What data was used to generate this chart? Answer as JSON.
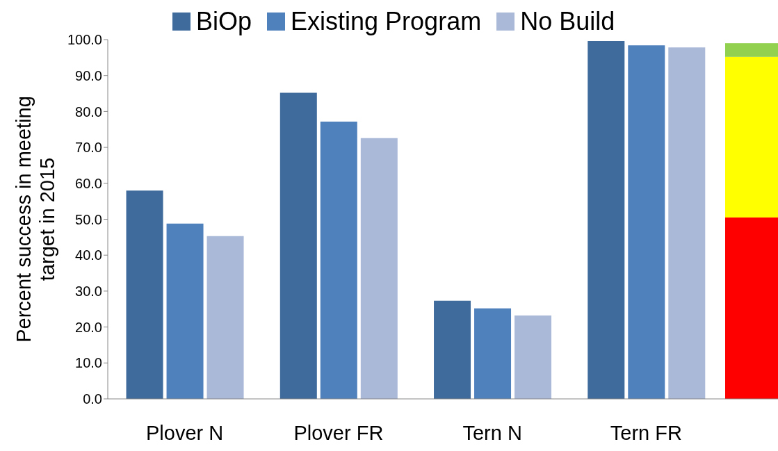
{
  "chart_data": {
    "type": "bar",
    "ylabel": "Percent success in meeting target in 2015",
    "categories": [
      "Plover N",
      "Plover FR",
      "Tern N",
      "Tern FR"
    ],
    "series": [
      {
        "name": "BiOp",
        "color": "#3e6a9c",
        "values": [
          58.0,
          85.2,
          27.3,
          99.6
        ]
      },
      {
        "name": "Existing Program",
        "color": "#4f81bd",
        "values": [
          48.8,
          77.2,
          25.2,
          98.4
        ]
      },
      {
        "name": "No Build",
        "color": "#aab9d8",
        "values": [
          45.3,
          72.6,
          23.2,
          97.8
        ]
      }
    ],
    "ylim": [
      0,
      100
    ],
    "yticks": [
      {
        "value": 0,
        "label": "0.0"
      },
      {
        "value": 10,
        "label": "10.0"
      },
      {
        "value": 20,
        "label": "20.0"
      },
      {
        "value": 30,
        "label": "30.0"
      },
      {
        "value": 40,
        "label": "40.0"
      },
      {
        "value": 50,
        "label": "50.0"
      },
      {
        "value": 60,
        "label": "60.0"
      },
      {
        "value": 70,
        "label": "70.0"
      },
      {
        "value": 80,
        "label": "80.0"
      },
      {
        "value": 90,
        "label": "90.0"
      },
      {
        "value": 100,
        "label": "100.0"
      }
    ],
    "bands": [
      {
        "axis": "y",
        "from": 0,
        "to": 50.5,
        "color": "#ff0000"
      },
      {
        "axis": "y",
        "from": 50.5,
        "to": 95.2,
        "color": "#ffff00"
      },
      {
        "axis": "y",
        "from": 95.2,
        "to": 99.0,
        "color": "#92d050"
      }
    ],
    "grid": false,
    "legend": "top"
  }
}
